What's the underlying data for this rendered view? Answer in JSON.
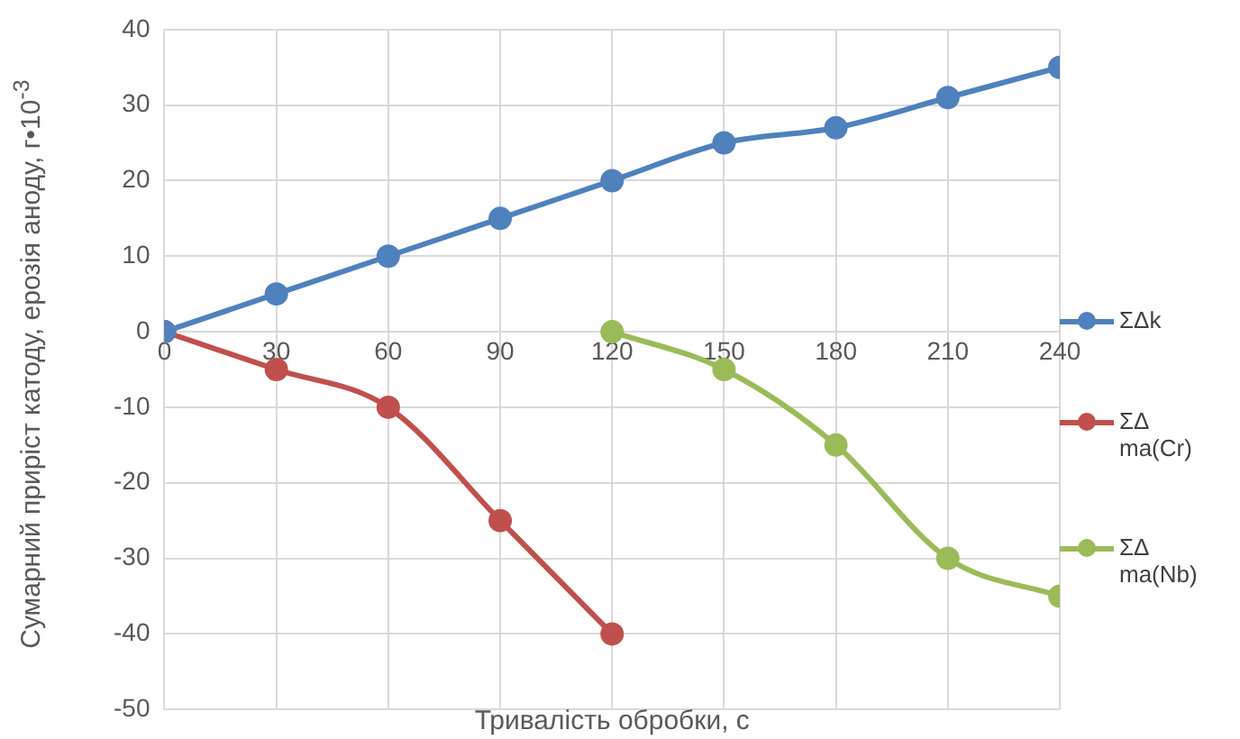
{
  "chart_data": {
    "type": "line",
    "xlabel": "Тривалість обробки, с",
    "ylabel": "Сумарний приріст катоду, ерозія аноду, г•10$^{-3}$",
    "xlim": [
      0,
      240
    ],
    "xticks": [
      0,
      30,
      60,
      90,
      120,
      150,
      180,
      210,
      240
    ],
    "ylim": [
      -50,
      40
    ],
    "yticks": [
      -50,
      -40,
      -30,
      -20,
      -10,
      0,
      10,
      20,
      30,
      40
    ],
    "grid": true,
    "legend": "right",
    "marker": "circle",
    "series": [
      {
        "name": "ΣΔk",
        "color": "#4f81bd",
        "x": [
          0,
          30,
          60,
          90,
          120,
          150,
          180,
          210,
          240
        ],
        "values": [
          0,
          5,
          10,
          15,
          20,
          25,
          27,
          31,
          35
        ]
      },
      {
        "name": "ΣΔ ma(Cr)",
        "color": "#c0504d",
        "x": [
          0,
          30,
          60,
          90,
          120
        ],
        "values": [
          0,
          -5,
          -10,
          -25,
          -40
        ]
      },
      {
        "name": "ΣΔ ma(Nb)",
        "color": "#9bbb59",
        "x": [
          120,
          150,
          180,
          210,
          240
        ],
        "values": [
          0,
          -5,
          -15,
          -30,
          -35
        ]
      }
    ]
  }
}
